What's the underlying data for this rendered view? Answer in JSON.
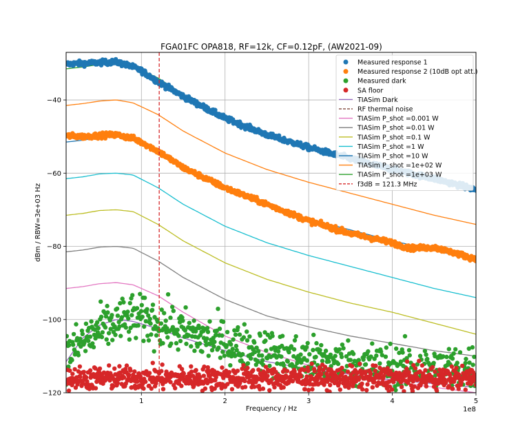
{
  "chart_data": {
    "type": "line",
    "title": "FGA01FC OPA818, RF=12k, CF=0.12pF, (AW2021-09)",
    "xlabel": "Frequency / Hz",
    "ylabel": "dBm / RBW=3e+03 Hz",
    "x_offset_label": "1e8",
    "xlim": [
      0.1,
      5.0
    ],
    "ylim": [
      -120,
      -27
    ],
    "x_ticks": [
      1,
      2,
      3,
      4,
      5
    ],
    "x_tick_labels": [
      "1",
      "2",
      "3",
      "4",
      "5"
    ],
    "y_ticks": [
      -120,
      -100,
      -80,
      -60,
      -40
    ],
    "y_tick_labels": [
      "−120",
      "−100",
      "−80",
      "−60",
      "−40"
    ],
    "grid": true,
    "legend_position": "top-right",
    "vline": {
      "name": "f3dB = 121.3 MHz",
      "x": 1.213,
      "color": "#d62728"
    },
    "series": [
      {
        "name": "Measured response 1",
        "kind": "scatter",
        "color": "#1f77b4",
        "x": [
          0.1,
          0.3,
          0.5,
          0.7,
          0.9,
          1.0,
          1.2,
          1.5,
          2.0,
          2.5,
          3.0,
          3.5,
          4.0,
          4.5,
          5.0
        ],
        "y": [
          -30.2,
          -30.0,
          -29.8,
          -29.6,
          -31.0,
          -32.0,
          -35.0,
          -39.0,
          -45.0,
          -49.5,
          -53.0,
          -56.0,
          -59.0,
          -61.5,
          -64.5
        ]
      },
      {
        "name": "Measured response 2 (10dB opt att.)",
        "kind": "scatter",
        "color": "#ff7f0e",
        "x": [
          0.1,
          0.3,
          0.5,
          0.7,
          0.9,
          1.0,
          1.2,
          1.5,
          2.0,
          2.5,
          3.0,
          3.5,
          4.0,
          4.2,
          4.5,
          4.7,
          5.0
        ],
        "y": [
          -49.8,
          -50.0,
          -49.7,
          -49.5,
          -50.5,
          -51.5,
          -54.0,
          -58.5,
          -64.0,
          -68.5,
          -73.0,
          -76.5,
          -79.0,
          -80.5,
          -80.3,
          -81.5,
          -83.5
        ]
      },
      {
        "name": "Measured dark",
        "kind": "scatter",
        "color": "#2ca02c",
        "x": [
          0.1,
          0.3,
          0.5,
          0.7,
          0.9,
          1.0,
          1.2,
          1.5,
          2.0,
          2.5,
          3.0,
          3.5,
          4.0,
          4.5,
          5.0
        ],
        "y": [
          -110,
          -106,
          -103,
          -101,
          -99.5,
          -100,
          -101,
          -103.5,
          -106.5,
          -109,
          -111,
          -112,
          -113,
          -113.5,
          -113
        ]
      },
      {
        "name": "SA floor",
        "kind": "scatter",
        "color": "#d62728",
        "x": [
          0.1,
          1.0,
          2.0,
          3.0,
          4.0,
          5.0
        ],
        "y": [
          -116,
          -116,
          -116,
          -116,
          -116,
          -116
        ]
      },
      {
        "name": "TIASim Dark",
        "kind": "line",
        "color": "#9467bd",
        "x": [
          0.1,
          0.3,
          0.5,
          0.7,
          0.9,
          1.2,
          1.5,
          2.0,
          2.5,
          3.0,
          3.5,
          4.0,
          4.5,
          5.0
        ],
        "y": [
          -111.5,
          -105,
          -101.5,
          -100,
          -100.5,
          -102.5,
          -105,
          -108.5,
          -111.5,
          -113.5,
          -115,
          -116.5,
          -117.5,
          -118.5
        ]
      },
      {
        "name": "RF thermal noise",
        "kind": "line",
        "color": "#8c564b",
        "dashed": true,
        "x": [],
        "y": []
      },
      {
        "name": "TIASim P_shot =0.001 W",
        "kind": "line",
        "color": "#e377c2",
        "x": [
          0.1,
          0.3,
          0.5,
          0.7,
          0.9,
          1.2,
          1.5,
          2.0,
          2.5,
          3.0,
          3.5,
          4.0,
          4.5,
          5.0
        ],
        "y": [
          -91.5,
          -91,
          -90.2,
          -89.9,
          -90.5,
          -93.5,
          -98,
          -104.5,
          -109,
          -112.5,
          -115,
          -117,
          -118.5,
          -120
        ]
      },
      {
        "name": "TIASim P_shot =0.01 W",
        "kind": "line",
        "color": "#7f7f7f",
        "x": [
          0.1,
          0.3,
          0.5,
          0.7,
          0.9,
          1.2,
          1.5,
          2.0,
          2.5,
          3.0,
          3.5,
          4.0,
          4.5,
          5.0
        ],
        "y": [
          -81.5,
          -81,
          -80.2,
          -80,
          -80.5,
          -84,
          -88.5,
          -94.5,
          -99,
          -102,
          -104.5,
          -106.5,
          -108.5,
          -110
        ]
      },
      {
        "name": "TIASim P_shot =0.1 W",
        "kind": "line",
        "color": "#bcbd22",
        "x": [
          0.1,
          0.3,
          0.5,
          0.7,
          0.9,
          1.2,
          1.5,
          2.0,
          2.5,
          3.0,
          3.5,
          4.0,
          4.5,
          5.0
        ],
        "y": [
          -71.5,
          -71,
          -70.2,
          -70,
          -70.5,
          -74,
          -78.5,
          -84.5,
          -89,
          -92.5,
          -95.5,
          -98,
          -101,
          -104
        ]
      },
      {
        "name": "TIASim P_shot =1 W",
        "kind": "line",
        "color": "#17becf",
        "x": [
          0.1,
          0.3,
          0.5,
          0.7,
          0.9,
          1.2,
          1.5,
          2.0,
          2.5,
          3.0,
          3.5,
          4.0,
          4.5,
          5.0
        ],
        "y": [
          -61.5,
          -61,
          -60.2,
          -60,
          -60.5,
          -64,
          -68.5,
          -74.5,
          -79,
          -82.5,
          -85.5,
          -88.5,
          -91.5,
          -94
        ]
      },
      {
        "name": "TIASim P_shot =10 W",
        "kind": "line",
        "color": "#1f77b4",
        "x": [
          0.1,
          0.3,
          0.5,
          0.7,
          0.9,
          1.2,
          1.5,
          2.0,
          2.5,
          3.0,
          3.5,
          4.0,
          4.5,
          5.0
        ],
        "y": [
          -51.5,
          -51,
          -50.3,
          -50,
          -50.8,
          -54,
          -58.5,
          -64.5,
          -69,
          -72.5,
          -75.5,
          -78.5,
          -81,
          -84
        ]
      },
      {
        "name": "TIASim P_shot =1e+02 W",
        "kind": "line",
        "color": "#ff7f0e",
        "x": [
          0.1,
          0.3,
          0.5,
          0.7,
          0.9,
          1.2,
          1.5,
          2.0,
          2.5,
          3.0,
          3.5,
          4.0,
          4.5,
          5.0
        ],
        "y": [
          -41.5,
          -41,
          -40.3,
          -40,
          -40.8,
          -44,
          -48.5,
          -54.5,
          -59,
          -62.5,
          -65.5,
          -68.5,
          -71.5,
          -74
        ]
      },
      {
        "name": "TIASim P_shot =1e+03 W",
        "kind": "line",
        "color": "#2ca02c",
        "x": [
          0.1,
          0.3,
          0.5,
          0.7,
          0.9,
          1.2,
          1.5,
          2.0,
          2.5,
          3.0,
          3.5,
          4.0,
          4.5,
          5.0
        ],
        "y": [
          -31.5,
          -31,
          -30.3,
          -30,
          -30.8,
          -34,
          -38.5,
          -44.5,
          -49,
          -52.5,
          -55.5,
          -58.5,
          -61.5,
          -64
        ]
      }
    ]
  }
}
